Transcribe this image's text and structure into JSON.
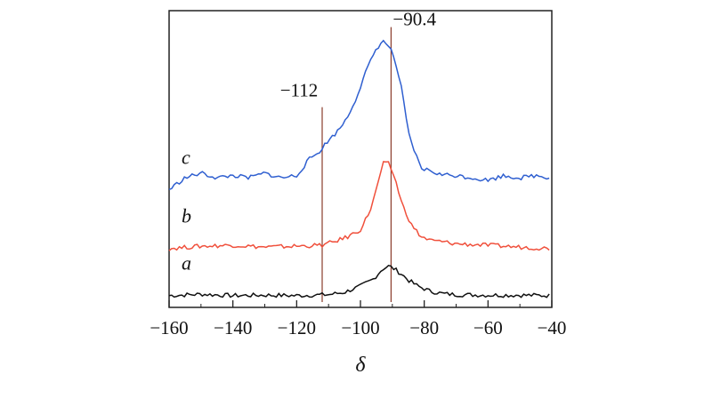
{
  "chart_data": {
    "type": "line",
    "title": "",
    "xlabel": "δ",
    "ylabel": "",
    "xlim": [
      -160,
      -40
    ],
    "x_ticks": [
      -160,
      -140,
      -120,
      -100,
      -80,
      -60,
      -40
    ],
    "x_tick_labels": [
      "−160",
      "−140",
      "−120",
      "−100",
      "−80",
      "−60",
      "−40"
    ],
    "y_ticks_shown": false,
    "grid": false,
    "legend": "none",
    "series_note": "stacked spectra with vertical offsets, intensity in arbitrary units",
    "series": [
      {
        "label": "a",
        "color": "#111111",
        "points": [
          [
            -160,
            0.05
          ],
          [
            -150,
            0.08
          ],
          [
            -140,
            0.05
          ],
          [
            -130,
            0.06
          ],
          [
            -120,
            0.05
          ],
          [
            -110,
            0.07
          ],
          [
            -105,
            0.12
          ],
          [
            -100,
            0.25
          ],
          [
            -96,
            0.4
          ],
          [
            -93,
            0.62
          ],
          [
            -91,
            0.68
          ],
          [
            -89,
            0.6
          ],
          [
            -87,
            0.5
          ],
          [
            -85,
            0.38
          ],
          [
            -82,
            0.25
          ],
          [
            -78,
            0.14
          ],
          [
            -74,
            0.09
          ],
          [
            -70,
            0.07
          ],
          [
            -60,
            0.06
          ],
          [
            -50,
            0.06
          ],
          [
            -40,
            0.05
          ]
        ]
      },
      {
        "label": "b",
        "color": "#f0503c",
        "points": [
          [
            -160,
            1.05
          ],
          [
            -150,
            1.1
          ],
          [
            -140,
            1.12
          ],
          [
            -130,
            1.08
          ],
          [
            -120,
            1.1
          ],
          [
            -112,
            1.12
          ],
          [
            -108,
            1.2
          ],
          [
            -104,
            1.3
          ],
          [
            -100,
            1.45
          ],
          [
            -97,
            1.85
          ],
          [
            -95,
            2.3
          ],
          [
            -93,
            2.85
          ],
          [
            -91,
            2.85
          ],
          [
            -89,
            2.5
          ],
          [
            -87,
            2.0
          ],
          [
            -84,
            1.55
          ],
          [
            -81,
            1.3
          ],
          [
            -78,
            1.22
          ],
          [
            -75,
            1.2
          ],
          [
            -70,
            1.15
          ],
          [
            -60,
            1.12
          ],
          [
            -50,
            1.08
          ],
          [
            -40,
            1.05
          ]
        ]
      },
      {
        "label": "c",
        "color": "#2f5fd0",
        "points": [
          [
            -160,
            2.3
          ],
          [
            -155,
            2.55
          ],
          [
            -150,
            2.65
          ],
          [
            -145,
            2.55
          ],
          [
            -140,
            2.6
          ],
          [
            -135,
            2.55
          ],
          [
            -130,
            2.65
          ],
          [
            -125,
            2.55
          ],
          [
            -120,
            2.6
          ],
          [
            -116,
            2.95
          ],
          [
            -113,
            3.1
          ],
          [
            -110,
            3.35
          ],
          [
            -107,
            3.55
          ],
          [
            -104,
            3.85
          ],
          [
            -101,
            4.3
          ],
          [
            -98,
            4.85
          ],
          [
            -95,
            5.3
          ],
          [
            -93,
            5.45
          ],
          [
            -91,
            5.35
          ],
          [
            -89,
            5.0
          ],
          [
            -87,
            4.4
          ],
          [
            -85,
            3.5
          ],
          [
            -83,
            3.1
          ],
          [
            -81,
            2.75
          ],
          [
            -78,
            2.7
          ],
          [
            -75,
            2.62
          ],
          [
            -70,
            2.6
          ],
          [
            -65,
            2.55
          ],
          [
            -60,
            2.5
          ],
          [
            -55,
            2.6
          ],
          [
            -50,
            2.55
          ],
          [
            -45,
            2.6
          ],
          [
            -40,
            2.55
          ]
        ]
      }
    ],
    "ylim": [
      -0.2,
      6.1
    ],
    "annotations": [
      {
        "label": "−112",
        "x": -112
      },
      {
        "label": "−90.4",
        "x": -90.4
      }
    ]
  }
}
